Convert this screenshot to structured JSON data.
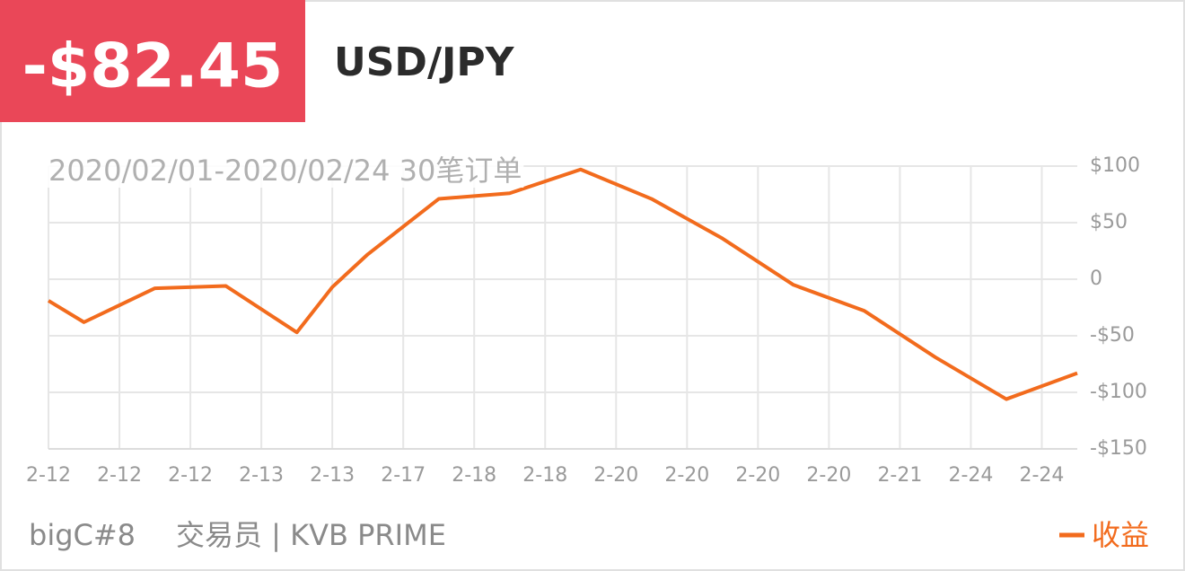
{
  "header": {
    "amount": "-$82.45",
    "symbol": "USD/JPY"
  },
  "footer": {
    "trader": "bigC#8",
    "role": "交易员 | KVB PRIME"
  },
  "chart_data": {
    "type": "line",
    "subtitle": "2020/02/01-2020/02/24 30笔订单",
    "x": [
      0,
      1,
      3,
      5,
      7,
      8,
      9,
      11,
      13,
      15,
      17,
      19,
      21,
      23,
      25,
      27,
      29
    ],
    "xlim": [
      0,
      29
    ],
    "xticks": [
      {
        "value": 0,
        "label": "2-12"
      },
      {
        "value": 2,
        "label": "2-12"
      },
      {
        "value": 4,
        "label": "2-12"
      },
      {
        "value": 6,
        "label": "2-13"
      },
      {
        "value": 8,
        "label": "2-13"
      },
      {
        "value": 10,
        "label": "2-17"
      },
      {
        "value": 12,
        "label": "2-18"
      },
      {
        "value": 14,
        "label": "2-18"
      },
      {
        "value": 16,
        "label": "2-20"
      },
      {
        "value": 18,
        "label": "2-20"
      },
      {
        "value": 20,
        "label": "2-20"
      },
      {
        "value": 22,
        "label": "2-20"
      },
      {
        "value": 24,
        "label": "2-21"
      },
      {
        "value": 26,
        "label": "2-24"
      },
      {
        "value": 28,
        "label": "2-24"
      }
    ],
    "ylim": [
      -150,
      100
    ],
    "yticks": [
      {
        "value": 100,
        "label": "$100"
      },
      {
        "value": 50,
        "label": "$50"
      },
      0,
      {
        "value": -50,
        "label": "-$50"
      },
      {
        "value": -100,
        "label": "-$100"
      },
      {
        "value": -150,
        "label": "-$150"
      }
    ],
    "grid": true,
    "legend": "bottom-right",
    "series": [
      {
        "name": "收益",
        "color": "#f26b1d",
        "values": [
          -19,
          -38,
          -8,
          -6,
          -47,
          -7,
          22,
          71,
          76,
          97,
          71,
          36,
          -5,
          -28,
          -69,
          -106,
          -83
        ]
      }
    ]
  }
}
